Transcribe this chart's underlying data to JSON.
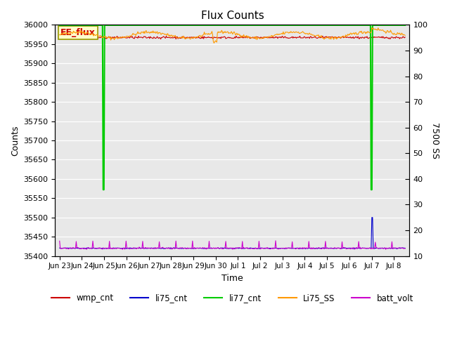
{
  "title": "Flux Counts",
  "xlabel": "Time",
  "ylabel_left": "Counts",
  "ylabel_right": "7500 SS",
  "annotation_text": "EE_flux",
  "background_color": "#e8e8e8",
  "ylim_left": [
    35400,
    36000
  ],
  "ylim_right": [
    10,
    100
  ],
  "x_tick_labels": [
    "Jun 23",
    "Jun 24",
    "Jun 25",
    "Jun 26",
    "Jun 27",
    "Jun 28",
    "Jun 29",
    "Jun 30",
    "Jul 1",
    "Jul 2",
    "Jul 3",
    "Jul 4",
    "Jul 5",
    "Jul 6",
    "Jul 7",
    "Jul 8"
  ],
  "x_tick_positions": [
    0,
    1,
    2,
    3,
    4,
    5,
    6,
    7,
    8,
    9,
    10,
    11,
    12,
    13,
    14,
    15
  ],
  "colors": {
    "wmp_cnt": "#cc0000",
    "li75_cnt": "#0000cc",
    "li77_cnt": "#00cc00",
    "Li75_SS": "#ff9900",
    "batt_volt": "#cc00cc"
  },
  "legend_labels": [
    "wmp_cnt",
    "li75_cnt",
    "li77_cnt",
    "Li75_SS",
    "batt_volt"
  ],
  "figsize": [
    6.4,
    4.8
  ],
  "dpi": 100
}
